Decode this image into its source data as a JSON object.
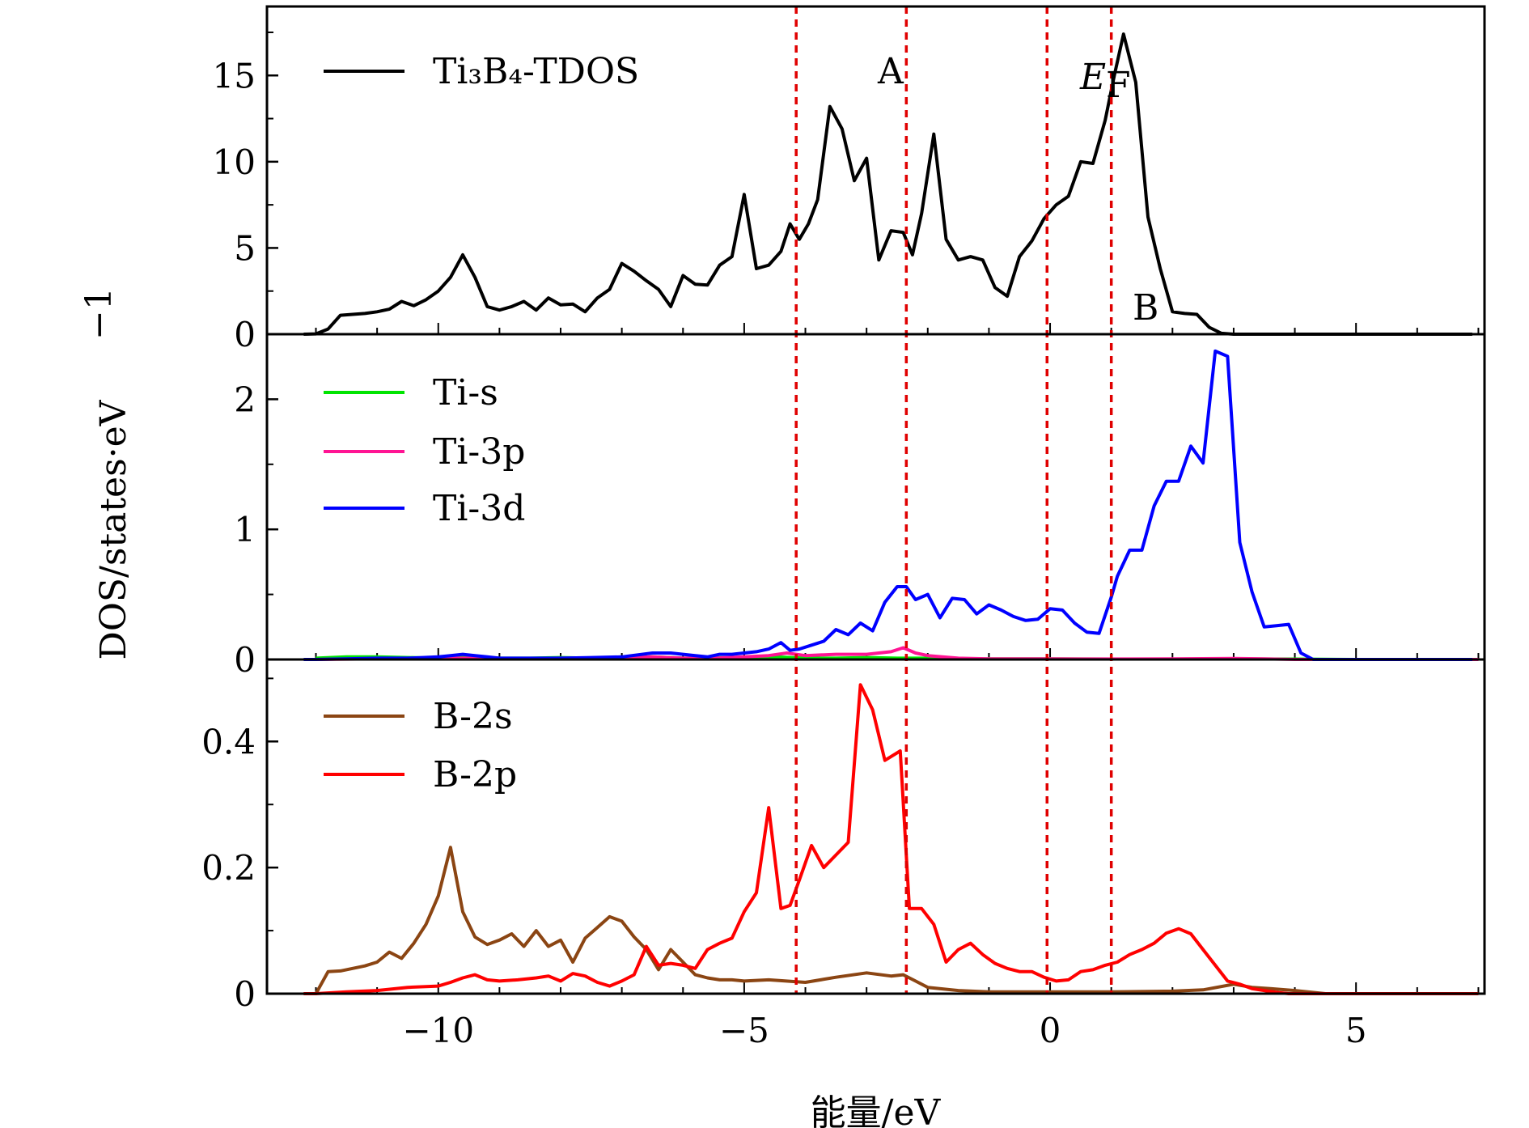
{
  "chart_data": [
    {
      "type": "line",
      "panel": "top",
      "xlim": [
        -12.8,
        7.1
      ],
      "ylim": [
        0,
        19
      ],
      "yticks": [
        0,
        5,
        10,
        15
      ],
      "ytick_labels": [
        "0",
        "5",
        "10",
        "15"
      ],
      "series": [
        {
          "name": "Ti3B4-TDOS",
          "color": "#000000",
          "x": [
            -12.2,
            -12.0,
            -11.8,
            -11.6,
            -11.4,
            -11.2,
            -11.0,
            -10.8,
            -10.6,
            -10.4,
            -10.2,
            -10.0,
            -9.8,
            -9.6,
            -9.4,
            -9.2,
            -9.0,
            -8.8,
            -8.6,
            -8.4,
            -8.2,
            -8.0,
            -7.8,
            -7.6,
            -7.4,
            -7.2,
            -7.0,
            -6.8,
            -6.6,
            -6.4,
            -6.2,
            -6.0,
            -5.8,
            -5.6,
            -5.4,
            -5.2,
            -5.0,
            -4.8,
            -4.6,
            -4.4,
            -4.25,
            -4.1,
            -3.95,
            -3.8,
            -3.6,
            -3.4,
            -3.2,
            -3.0,
            -2.8,
            -2.6,
            -2.4,
            -2.25,
            -2.1,
            -1.9,
            -1.7,
            -1.5,
            -1.3,
            -1.1,
            -0.9,
            -0.7,
            -0.5,
            -0.3,
            -0.1,
            0.1,
            0.3,
            0.5,
            0.7,
            0.9,
            1.05,
            1.2,
            1.4,
            1.6,
            1.8,
            2.0,
            2.2,
            2.4,
            2.6,
            2.8,
            3.0,
            3.2,
            3.3,
            3.5,
            3.7,
            3.9,
            4.1,
            4.3,
            4.5,
            4.7,
            4.9,
            5.1,
            5.3,
            5.5,
            5.7,
            5.9,
            6.1,
            6.3,
            6.5,
            6.7,
            6.9
          ],
          "y": [
            0.0,
            0.02,
            0.3,
            1.1,
            1.15,
            1.2,
            1.3,
            1.45,
            1.9,
            1.65,
            2.0,
            2.5,
            3.3,
            4.6,
            3.3,
            1.6,
            1.4,
            1.6,
            1.9,
            1.4,
            2.1,
            1.7,
            1.75,
            1.3,
            2.1,
            2.6,
            4.1,
            3.65,
            3.1,
            2.6,
            1.6,
            3.4,
            2.9,
            2.85,
            4.0,
            4.5,
            8.1,
            3.8,
            4.0,
            4.8,
            6.4,
            5.5,
            6.4,
            7.8,
            13.2,
            11.9,
            8.9,
            10.2,
            4.3,
            6.0,
            5.9,
            4.6,
            7.0,
            11.6,
            5.5,
            4.3,
            4.5,
            4.3,
            2.7,
            2.2,
            4.5,
            5.4,
            6.7,
            7.5,
            8.0,
            10.0,
            9.9,
            12.4,
            15.0,
            17.4,
            14.6,
            6.8,
            3.8,
            1.3,
            1.2,
            1.15,
            0.4,
            0.05,
            0.0,
            0.0,
            0.0,
            0.0,
            0.0,
            0.0,
            0.0,
            0.0,
            0.0,
            0.0,
            0.0,
            0.0,
            0.0,
            0.0,
            0.0,
            0.0,
            0.0,
            0.0,
            0.0,
            0.0,
            0.0
          ]
        }
      ]
    },
    {
      "type": "line",
      "panel": "middle",
      "xlim": [
        -12.8,
        7.1
      ],
      "ylim": [
        0,
        2.5
      ],
      "yticks": [
        0,
        1,
        2
      ],
      "ytick_labels": [
        "0",
        "1",
        "2"
      ],
      "series": [
        {
          "name": "Ti-s",
          "color": "#00e400",
          "x": [
            -12.0,
            -11.5,
            -11.0,
            -10.5,
            -10.0,
            -9.5,
            -9.0,
            -8.5,
            -8.0,
            -7.5,
            -7.0,
            -6.5,
            -6.0,
            -5.5,
            -5.0,
            -4.5,
            -4.0,
            -3.5,
            -3.0,
            -2.5,
            -2.0,
            -1.5,
            -1.0,
            -0.5,
            0.0,
            1.0,
            2.0,
            3.0,
            4.0,
            5.0,
            6.0,
            7.0
          ],
          "y": [
            0.01,
            0.02,
            0.02,
            0.015,
            0.01,
            0.02,
            0.01,
            0.01,
            0.015,
            0.01,
            0.01,
            0.02,
            0.01,
            0.015,
            0.01,
            0.02,
            0.01,
            0.01,
            0.015,
            0.01,
            0.01,
            0.005,
            0.005,
            0.005,
            0.005,
            0.003,
            0.003,
            0.005,
            0.003,
            0.0,
            0.0,
            0.0
          ]
        },
        {
          "name": "Ti-3p",
          "color": "#ff1493",
          "x": [
            -12.0,
            -11.0,
            -10.0,
            -9.5,
            -9.0,
            -8.0,
            -7.0,
            -6.5,
            -6.0,
            -5.5,
            -5.0,
            -4.6,
            -4.3,
            -4.0,
            -3.5,
            -3.0,
            -2.6,
            -2.4,
            -2.2,
            -2.0,
            -1.5,
            -1.0,
            -0.5,
            0.0,
            0.5,
            1.0,
            2.0,
            3.0,
            3.5,
            4.0,
            5.0,
            6.0,
            7.0
          ],
          "y": [
            0.0,
            0.005,
            0.01,
            0.01,
            0.005,
            0.01,
            0.01,
            0.02,
            0.01,
            0.01,
            0.02,
            0.03,
            0.05,
            0.03,
            0.04,
            0.04,
            0.06,
            0.09,
            0.05,
            0.03,
            0.01,
            0.005,
            0.005,
            0.005,
            0.004,
            0.004,
            0.005,
            0.008,
            0.005,
            0.0,
            0.0,
            0.0,
            0.0
          ]
        },
        {
          "name": "Ti-3d",
          "color": "#0000ff",
          "x": [
            -12.2,
            -12.0,
            -11.5,
            -11.0,
            -10.5,
            -10.0,
            -9.8,
            -9.6,
            -9.4,
            -9.2,
            -9.0,
            -8.5,
            -8.0,
            -7.5,
            -7.0,
            -6.5,
            -6.2,
            -6.0,
            -5.8,
            -5.6,
            -5.4,
            -5.2,
            -5.0,
            -4.8,
            -4.6,
            -4.4,
            -4.25,
            -4.1,
            -3.9,
            -3.7,
            -3.5,
            -3.3,
            -3.1,
            -2.9,
            -2.7,
            -2.5,
            -2.35,
            -2.2,
            -2.0,
            -1.8,
            -1.6,
            -1.4,
            -1.2,
            -1.0,
            -0.8,
            -0.6,
            -0.4,
            -0.2,
            0.0,
            0.2,
            0.4,
            0.6,
            0.8,
            1.0,
            1.1,
            1.3,
            1.5,
            1.7,
            1.9,
            2.1,
            2.3,
            2.5,
            2.7,
            2.9,
            3.1,
            3.3,
            3.5,
            3.7,
            3.9,
            4.1,
            4.3,
            4.5,
            4.7,
            4.9,
            5.1,
            5.3,
            5.5,
            5.7,
            5.9,
            6.1,
            6.3,
            6.5,
            6.7,
            6.9
          ],
          "y": [
            0.0,
            0.0,
            0.005,
            0.01,
            0.01,
            0.02,
            0.03,
            0.04,
            0.03,
            0.02,
            0.01,
            0.01,
            0.01,
            0.015,
            0.02,
            0.05,
            0.05,
            0.04,
            0.03,
            0.02,
            0.04,
            0.04,
            0.05,
            0.06,
            0.08,
            0.13,
            0.07,
            0.08,
            0.11,
            0.14,
            0.23,
            0.19,
            0.28,
            0.22,
            0.44,
            0.56,
            0.56,
            0.46,
            0.5,
            0.32,
            0.47,
            0.46,
            0.35,
            0.42,
            0.38,
            0.33,
            0.3,
            0.31,
            0.39,
            0.38,
            0.28,
            0.21,
            0.2,
            0.48,
            0.64,
            0.84,
            0.84,
            1.18,
            1.37,
            1.37,
            1.64,
            1.51,
            2.37,
            2.33,
            0.9,
            0.52,
            0.25,
            0.26,
            0.27,
            0.05,
            0.0,
            0.0,
            0.0,
            0.0,
            0.0,
            0.0,
            0.0,
            0.0,
            0.0,
            0.0,
            0.0,
            0.0,
            0.0,
            0.0
          ]
        }
      ]
    },
    {
      "type": "line",
      "panel": "bottom",
      "xlim": [
        -12.8,
        7.1
      ],
      "ylim": [
        0,
        0.53
      ],
      "yticks": [
        0,
        0.2,
        0.4
      ],
      "ytick_labels": [
        "0",
        "0.2",
        "0.4"
      ],
      "xticks": [
        -10,
        -5,
        0,
        5
      ],
      "xtick_labels": [
        "−10",
        "−5",
        "0",
        "5"
      ],
      "xlabel": "能量/eV",
      "series": [
        {
          "name": "B-2s",
          "color": "#8b4513",
          "x": [
            -12.2,
            -12.0,
            -11.8,
            -11.6,
            -11.4,
            -11.2,
            -11.0,
            -10.8,
            -10.6,
            -10.4,
            -10.2,
            -10.0,
            -9.8,
            -9.6,
            -9.4,
            -9.2,
            -9.0,
            -8.8,
            -8.6,
            -8.4,
            -8.2,
            -8.0,
            -7.8,
            -7.6,
            -7.4,
            -7.2,
            -7.0,
            -6.8,
            -6.6,
            -6.4,
            -6.2,
            -6.0,
            -5.8,
            -5.6,
            -5.4,
            -5.2,
            -5.0,
            -4.6,
            -4.0,
            -3.5,
            -3.0,
            -2.6,
            -2.4,
            -2.2,
            -2.0,
            -1.5,
            -1.0,
            0.0,
            1.0,
            2.0,
            2.5,
            3.0,
            3.3,
            3.6,
            4.0,
            4.5,
            5.0,
            5.5,
            6.0,
            6.5,
            7.0
          ],
          "y": [
            0.0,
            0.0,
            0.035,
            0.036,
            0.04,
            0.044,
            0.05,
            0.066,
            0.056,
            0.08,
            0.11,
            0.155,
            0.232,
            0.13,
            0.09,
            0.078,
            0.085,
            0.095,
            0.075,
            0.1,
            0.075,
            0.085,
            0.05,
            0.088,
            0.105,
            0.122,
            0.115,
            0.09,
            0.07,
            0.038,
            0.07,
            0.05,
            0.03,
            0.025,
            0.022,
            0.022,
            0.02,
            0.022,
            0.018,
            0.026,
            0.033,
            0.028,
            0.03,
            0.02,
            0.01,
            0.005,
            0.003,
            0.003,
            0.003,
            0.004,
            0.006,
            0.015,
            0.01,
            0.008,
            0.005,
            0.0,
            0.0,
            0.0,
            0.0,
            0.0,
            0.0
          ]
        },
        {
          "name": "B-2p",
          "color": "#ff0000",
          "x": [
            -12.2,
            -12.0,
            -11.5,
            -11.0,
            -10.5,
            -10.0,
            -9.8,
            -9.6,
            -9.4,
            -9.2,
            -9.0,
            -8.7,
            -8.4,
            -8.2,
            -8.0,
            -7.8,
            -7.6,
            -7.4,
            -7.2,
            -7.0,
            -6.8,
            -6.6,
            -6.4,
            -6.2,
            -6.0,
            -5.8,
            -5.6,
            -5.4,
            -5.2,
            -5.0,
            -4.8,
            -4.6,
            -4.4,
            -4.25,
            -4.1,
            -3.9,
            -3.7,
            -3.5,
            -3.3,
            -3.1,
            -2.9,
            -2.7,
            -2.45,
            -2.3,
            -2.1,
            -1.9,
            -1.7,
            -1.5,
            -1.3,
            -1.1,
            -0.9,
            -0.7,
            -0.5,
            -0.3,
            -0.1,
            0.1,
            0.3,
            0.5,
            0.7,
            0.9,
            1.1,
            1.3,
            1.5,
            1.7,
            1.9,
            2.1,
            2.3,
            2.5,
            2.7,
            2.9,
            3.1,
            3.3,
            3.5,
            3.7,
            3.9,
            4.1,
            4.3,
            4.5,
            4.7,
            4.9,
            5.1,
            5.5,
            6.0,
            6.5,
            7.0
          ],
          "y": [
            0.0,
            0.0,
            0.003,
            0.005,
            0.01,
            0.012,
            0.018,
            0.025,
            0.03,
            0.022,
            0.02,
            0.022,
            0.025,
            0.028,
            0.02,
            0.032,
            0.028,
            0.018,
            0.012,
            0.02,
            0.03,
            0.075,
            0.045,
            0.048,
            0.045,
            0.04,
            0.07,
            0.08,
            0.088,
            0.13,
            0.16,
            0.295,
            0.135,
            0.14,
            0.18,
            0.235,
            0.2,
            0.22,
            0.24,
            0.49,
            0.45,
            0.37,
            0.385,
            0.135,
            0.135,
            0.11,
            0.05,
            0.07,
            0.08,
            0.062,
            0.048,
            0.04,
            0.035,
            0.035,
            0.026,
            0.02,
            0.022,
            0.035,
            0.038,
            0.045,
            0.05,
            0.062,
            0.07,
            0.08,
            0.096,
            0.103,
            0.095,
            0.07,
            0.045,
            0.02,
            0.015,
            0.008,
            0.005,
            0.002,
            0.0,
            0.0,
            0.0,
            0.0,
            0.0,
            0.0,
            0.0,
            0.0,
            0.0,
            0.0,
            0.0
          ]
        }
      ]
    }
  ],
  "ylabel": "DOS/states·eV",
  "ylabel_superscript": "−1",
  "vlines": [
    {
      "x": -4.15,
      "color": "#e00000"
    },
    {
      "x": -2.35,
      "color": "#e00000"
    },
    {
      "x": -0.05,
      "color": "#e00000"
    },
    {
      "x": 1.0,
      "color": "#e00000"
    }
  ],
  "annotations": {
    "A": "A",
    "B": "B",
    "EF_main": "E",
    "EF_sub": "F"
  },
  "legend": {
    "top": [
      {
        "label": "Ti₃B₄-TDOS",
        "color": "#000000"
      }
    ],
    "middle": [
      {
        "label": "Ti-s",
        "color": "#00e400"
      },
      {
        "label": "Ti-3p",
        "color": "#ff1493"
      },
      {
        "label": "Ti-3d",
        "color": "#0000ff"
      }
    ],
    "bottom": [
      {
        "label": "B-2s",
        "color": "#8b4513"
      },
      {
        "label": "B-2p",
        "color": "#ff0000"
      }
    ]
  }
}
